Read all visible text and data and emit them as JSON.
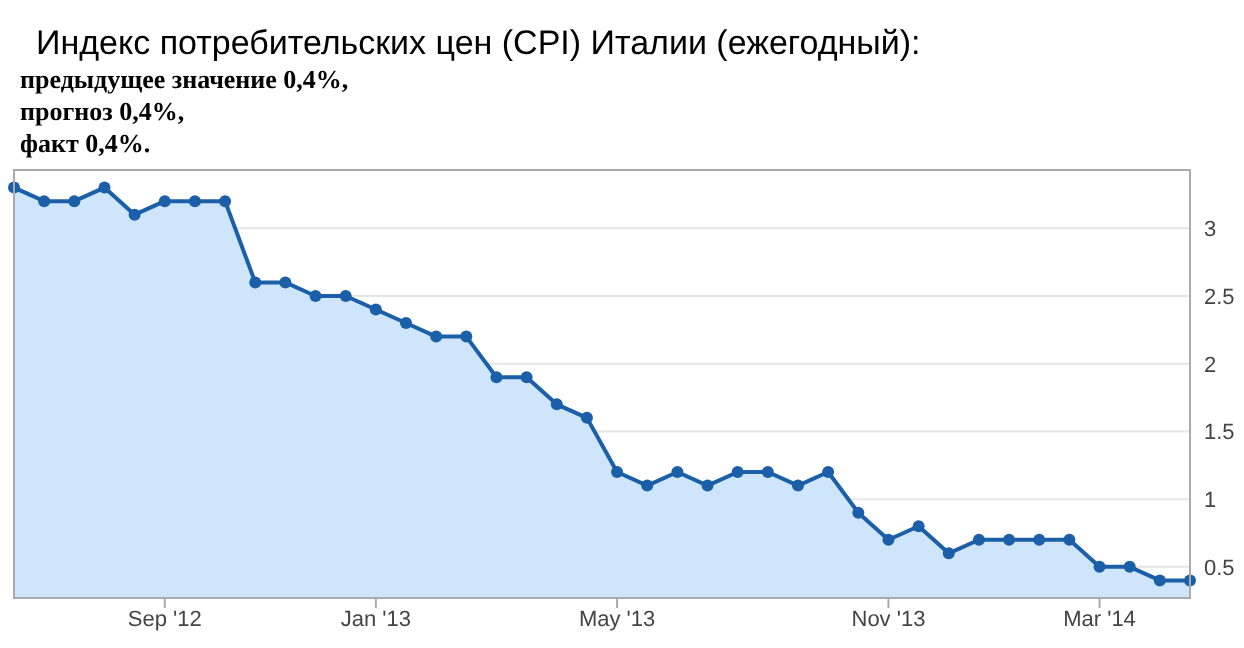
{
  "chart_data": {
    "type": "area",
    "title": "Индекс потребительских цен (CPI) Италии (ежегодный):",
    "annotations": [
      "предыдущее значение 0,4%,",
      "прогноз 0,4%,",
      "факт 0,4%."
    ],
    "categories": [
      null,
      null,
      null,
      null,
      null,
      "Sep '12",
      null,
      null,
      null,
      null,
      null,
      null,
      "Jan '13",
      null,
      null,
      null,
      null,
      null,
      null,
      null,
      "May '13",
      null,
      null,
      null,
      null,
      null,
      null,
      null,
      null,
      "Nov '13",
      null,
      null,
      null,
      null,
      null,
      null,
      "Mar '14",
      null,
      null,
      null
    ],
    "series": [
      {
        "color": "#1a5fa8",
        "values": [
          3.3,
          3.2,
          3.2,
          3.3,
          3.1,
          3.2,
          3.2,
          3.2,
          2.6,
          2.6,
          2.5,
          2.5,
          2.4,
          2.3,
          2.2,
          2.2,
          1.9,
          1.9,
          1.7,
          1.6,
          1.2,
          1.1,
          1.2,
          1.1,
          1.2,
          1.2,
          1.1,
          1.2,
          0.9,
          0.7,
          0.8,
          0.6,
          0.7,
          0.7,
          0.7,
          0.7,
          0.5,
          0.5,
          0.4,
          0.4
        ]
      }
    ],
    "ylim": [
      0.27,
      3.43
    ],
    "yticks": [
      0.5,
      1,
      1.5,
      2,
      2.5,
      3
    ],
    "grid": "y",
    "marker": "circle"
  }
}
